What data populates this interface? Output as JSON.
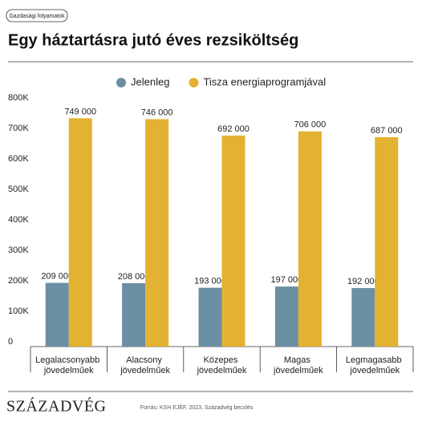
{
  "header": {
    "tag": "Gazdasági folyamatok",
    "logo": "SZÁZADVÉG",
    "source": "Forrás: KSH EJÉF, 2023, Századvég becslés"
  },
  "chart_data": {
    "type": "bar",
    "title": "Egy háztartásra jutó éves rezsiköltség",
    "categories": [
      "Legalacsonyabb jövedelműek",
      "Alacsony jövedelműek",
      "Közepes jövedelműek",
      "Magas jövedelműek",
      "Legmagasabb jövedelműek"
    ],
    "series": [
      {
        "name": "Jelenleg",
        "color": "#6b8fa3",
        "values": [
          209000,
          208000,
          193000,
          197000,
          192000
        ],
        "value_labels": [
          "209 000",
          "208 000",
          "193 000",
          "197 000",
          "192 000"
        ]
      },
      {
        "name": "Tisza energiaprogramjával",
        "color": "#e3b232",
        "values": [
          749000,
          746000,
          692000,
          706000,
          687000
        ],
        "value_labels": [
          "749 000",
          "746 000",
          "692 000",
          "706 000",
          "687 000"
        ]
      }
    ],
    "ylim": [
      0,
      800000
    ],
    "yticks": [
      0,
      {
        "value": 100000,
        "label": "100K"
      },
      {
        "value": 200000,
        "label": "200K"
      },
      {
        "value": 300000,
        "label": "300K"
      },
      {
        "value": 400000,
        "label": "400K"
      },
      {
        "value": 500000,
        "label": "500K"
      },
      {
        "value": 600000,
        "label": "600K"
      },
      {
        "value": 700000,
        "label": "700K"
      },
      {
        "value": 800000,
        "label": "800K"
      }
    ],
    "legend": "top"
  }
}
